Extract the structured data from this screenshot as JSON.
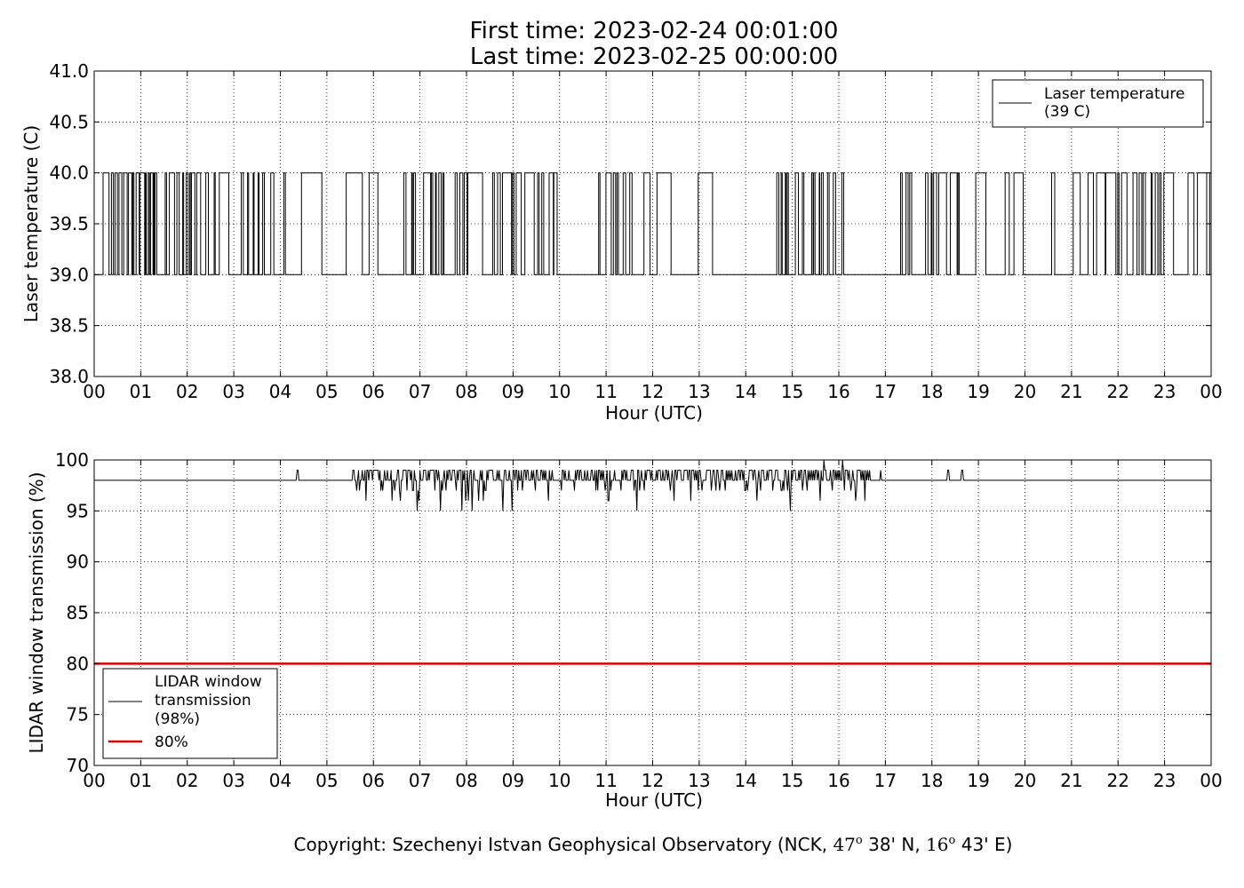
{
  "figure": {
    "title_line1": "First time: 2023-02-24 00:01:00",
    "title_line2": "Last time: 2023-02-25 00:00:00",
    "copyright": {
      "prefix": "Copyright: Szechenyi Istvan Geophysical Observatory (NCK, ",
      "lat_deg": "47",
      "lat_rest": " 38' N, ",
      "lon_deg": "16",
      "lon_rest": " 43' E)",
      "degree_mark": "o"
    }
  },
  "chart_data": [
    {
      "type": "line",
      "ylabel": "Laser temperature (C)",
      "xlabel": "Hour (UTC)",
      "ylim": [
        38.0,
        41.0
      ],
      "xlim": [
        0,
        24
      ],
      "yticks": [
        "38.0",
        "38.5",
        "39.0",
        "39.5",
        "40.0",
        "40.5",
        "41.0"
      ],
      "xticks": [
        "00",
        "01",
        "02",
        "03",
        "04",
        "05",
        "06",
        "07",
        "08",
        "09",
        "10",
        "11",
        "12",
        "13",
        "14",
        "15",
        "16",
        "17",
        "18",
        "19",
        "20",
        "21",
        "22",
        "23",
        "00"
      ],
      "grid": true,
      "legend_position": "top-right",
      "series": [
        {
          "name": "Laser temperature\n(39 C)",
          "legend_lines": [
            "Laser temperature",
            "(39 C)"
          ],
          "color": "#000000",
          "values_set": [
            39.0,
            40.0
          ],
          "baseline": 39.0,
          "high": 40.0,
          "flat_intervals_at_39": [
            [
              13.6,
              14.6
            ],
            [
              16.3,
              16.95
            ]
          ],
          "dense_toggle_periods": [
            [
              0.0,
              2.8
            ],
            [
              3.0,
              4.1
            ],
            [
              6.6,
              9.9
            ],
            [
              10.8,
              12.4
            ],
            [
              14.6,
              15.9
            ],
            [
              17.0,
              18.6
            ],
            [
              21.7,
              23.0
            ]
          ]
        }
      ]
    },
    {
      "type": "line",
      "ylabel": "LIDAR window transmission (%)",
      "xlabel": "Hour (UTC)",
      "ylim": [
        70,
        100
      ],
      "xlim": [
        0,
        24
      ],
      "yticks": [
        "70",
        "75",
        "80",
        "85",
        "90",
        "95",
        "100"
      ],
      "xticks": [
        "00",
        "01",
        "02",
        "03",
        "04",
        "05",
        "06",
        "07",
        "08",
        "09",
        "10",
        "11",
        "12",
        "13",
        "14",
        "15",
        "16",
        "17",
        "18",
        "19",
        "20",
        "21",
        "22",
        "23",
        "00"
      ],
      "grid": true,
      "legend_position": "bottom-left",
      "series": [
        {
          "name": "LIDAR window\ntransmission\n(98%)",
          "legend_lines": [
            "LIDAR window",
            "transmission",
            "(98%)"
          ],
          "color": "#000000",
          "baseline": 98,
          "range": [
            95,
            100
          ],
          "active_period": [
            5.5,
            16.7
          ],
          "spikes": [
            [
              4.37,
              99
            ],
            [
              16.9,
              99
            ],
            [
              18.35,
              99
            ],
            [
              18.65,
              99
            ]
          ]
        },
        {
          "name": "80%",
          "legend_lines": [
            "80%"
          ],
          "color": "#e00000",
          "value": 80
        }
      ]
    }
  ]
}
